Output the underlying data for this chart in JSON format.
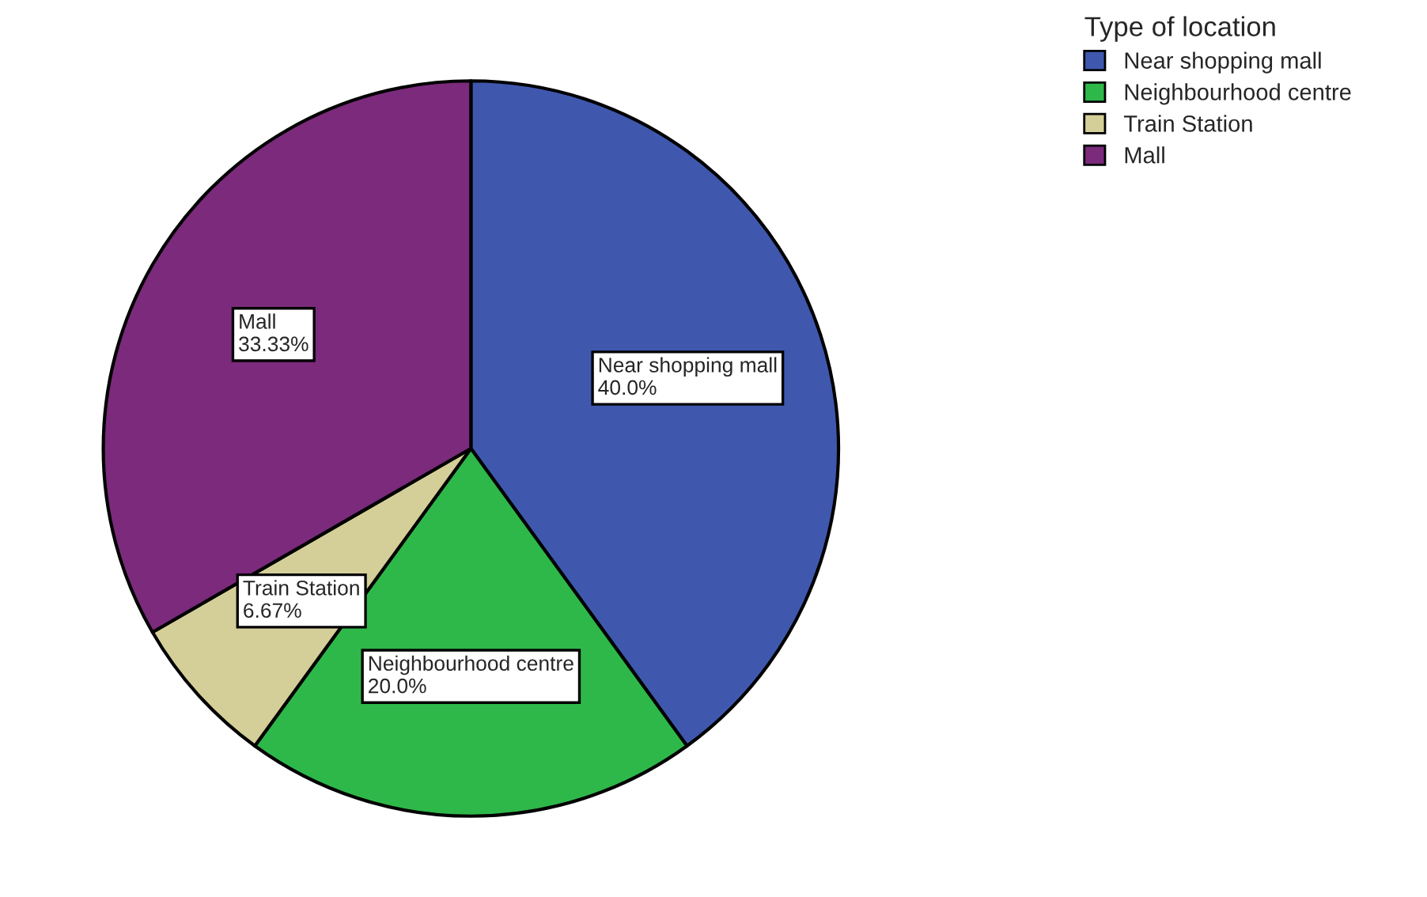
{
  "chart_data": {
    "type": "pie",
    "legend_title": "Type of location",
    "legend": "top right",
    "categories": [
      "Near shopping mall",
      "Neighbourhood centre",
      "Train Station",
      "Mall"
    ],
    "values": [
      40.0,
      20.0,
      6.67,
      33.33
    ],
    "value_labels": [
      "40.0%",
      "20.0%",
      "6.67%",
      "33.33%"
    ],
    "colors": [
      "#3f58ae",
      "#2eb84a",
      "#d4cf98",
      "#7b2a7c"
    ]
  }
}
